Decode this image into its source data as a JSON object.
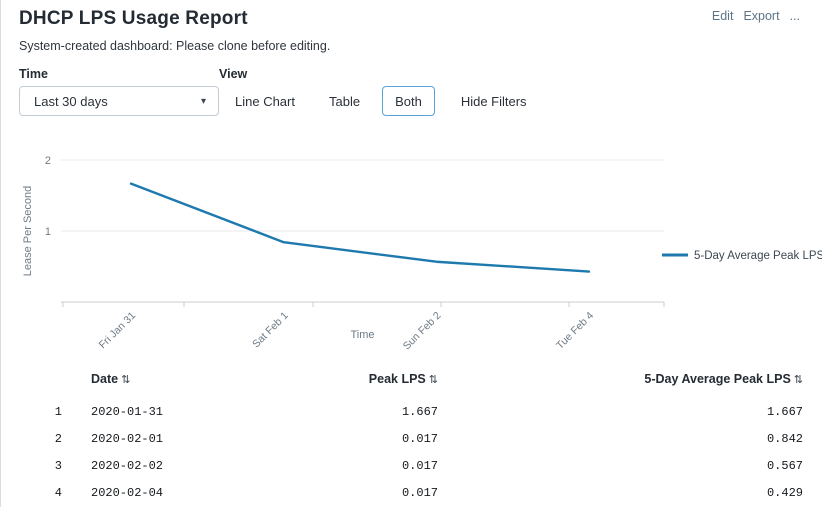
{
  "page": {
    "title": "DHCP LPS Usage Report",
    "subtitle": "System-created dashboard: Please clone before editing.",
    "actions": {
      "edit": "Edit",
      "export": "Export",
      "more": "..."
    }
  },
  "filters": {
    "time_label": "Time",
    "time_value": "Last 30 days",
    "view_label": "View",
    "view_options": [
      "Line Chart",
      "Table",
      "Both"
    ],
    "view_selected": "Both",
    "hide_filters_label": "Hide Filters"
  },
  "chart_data": {
    "type": "line",
    "title": "",
    "xlabel": "Time",
    "ylabel": "Lease Per Second",
    "categories": [
      "Fri Jan 31",
      "Sat Feb 1",
      "Sun Feb 2",
      "Tue Feb 4"
    ],
    "series": [
      {
        "name": "5-Day Average Peak LPS",
        "color": "#1d79ae",
        "values": [
          1.667,
          0.842,
          0.567,
          0.429
        ]
      }
    ],
    "ylim": [
      0,
      2.28
    ],
    "yticks": [
      1,
      2
    ],
    "grid": "horizontal",
    "legend_position": "right"
  },
  "table": {
    "columns": [
      "Date",
      "Peak LPS",
      "5-Day Average Peak LPS"
    ],
    "sort_icon": "⇅",
    "rows": [
      {
        "index": "1",
        "date": "2020-01-31",
        "peak": "1.667",
        "avg": "1.667"
      },
      {
        "index": "2",
        "date": "2020-02-01",
        "peak": "0.017",
        "avg": "0.842"
      },
      {
        "index": "3",
        "date": "2020-02-02",
        "peak": "0.017",
        "avg": "0.567"
      },
      {
        "index": "4",
        "date": "2020-02-04",
        "peak": "0.017",
        "avg": "0.429"
      }
    ]
  },
  "colors": {
    "accent": "#1d79ae",
    "selected_border": "#57a3da",
    "link": "#5c7486",
    "axis_text": "#6e7b86",
    "gridline": "#e8eaec",
    "axis_line": "#c8ccd0"
  }
}
